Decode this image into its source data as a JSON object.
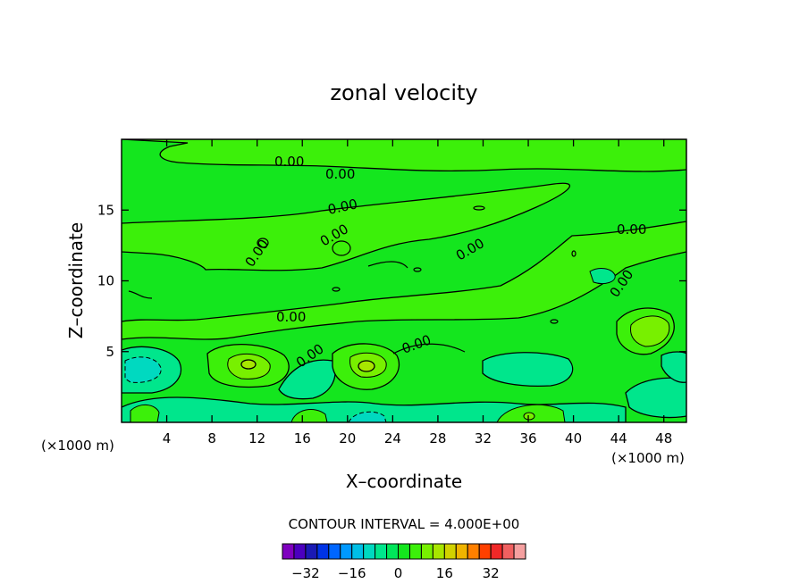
{
  "chart_data": {
    "type": "heatmap",
    "title": "zonal velocity",
    "xlabel": "X–coordinate",
    "ylabel": "Z–coordinate",
    "x_unit_left": "(×1000 m)",
    "x_unit_right": "(×1000 m)",
    "xlim": [
      0,
      50
    ],
    "ylim": [
      0,
      20
    ],
    "x_ticks": [
      4,
      8,
      12,
      16,
      20,
      24,
      28,
      32,
      36,
      40,
      44,
      48
    ],
    "y_ticks": [
      5,
      10,
      15
    ],
    "contour_label": "0.00",
    "contour_interval_text": "CONTOUR INTERVAL = 4.000E+00",
    "colorbar": {
      "levels": [
        -36,
        -32,
        -28,
        -24,
        -20,
        -16,
        -12,
        -8,
        -4,
        0,
        4,
        8,
        12,
        16,
        20,
        24,
        28,
        32,
        36
      ],
      "colors": [
        "#7f00bf",
        "#4b00bf",
        "#1a1ab4",
        "#0033e6",
        "#0066ff",
        "#0099ff",
        "#00bfe6",
        "#00d9c0",
        "#00e68c",
        "#00e65a",
        "#14e61e",
        "#3cf00a",
        "#78f000",
        "#a8e600",
        "#d2d200",
        "#f0b400",
        "#ff8000",
        "#ff4000",
        "#f02828",
        "#f06060",
        "#f5a0a0"
      ],
      "tick_labels": [
        "−32",
        "−16",
        "0",
        "16",
        "32"
      ],
      "tick_values": [
        -32,
        -16,
        0,
        16,
        32
      ]
    },
    "background_color": "#14e61e"
  }
}
